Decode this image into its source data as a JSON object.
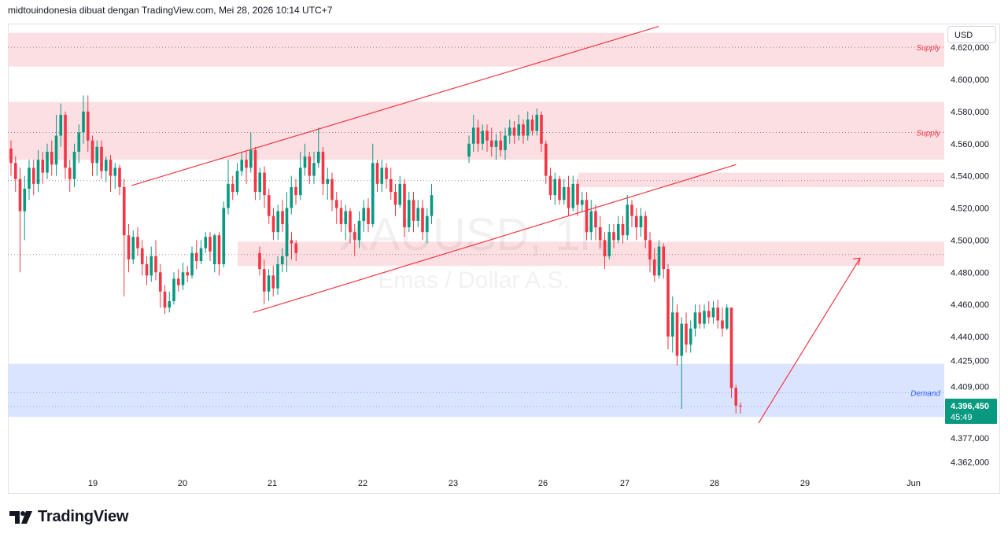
{
  "header": {
    "text": "midtouindonesia dibuat dengan TradingView.com, Mei 28, 2026 10:14 UTC+7"
  },
  "currency": "USD",
  "watermark": {
    "symbol": "XAUUSD, 1h",
    "name": "Emas / Dollar A.S."
  },
  "logo": {
    "text": "TradingView"
  },
  "price_label": {
    "price": "4.396,450",
    "countdown": "45:49"
  },
  "colors": {
    "bull": "#089981",
    "bear": "#f23645",
    "supply": "#fcdcdf",
    "demand": "#d9e3ff",
    "line": "#f23645"
  },
  "chart_data": {
    "type": "candlestick",
    "timeframe": "1h",
    "y_ticks": [
      4620,
      4600,
      4580,
      4560,
      4540,
      4520,
      4500,
      4480,
      4460,
      4440,
      4425,
      4409,
      4377,
      4362
    ],
    "y_tick_labels": [
      "4.620,000",
      "4.600,000",
      "4.580,000",
      "4.560,000",
      "4.540,000",
      "4.520,000",
      "4.500,000",
      "4.480,000",
      "4.460,000",
      "4.440,000",
      "4.425,000",
      "4.409,000",
      "4.377,000",
      "4.362,000"
    ],
    "x_ticks": [
      "19",
      "20",
      "21",
      "22",
      "23",
      "26",
      "27",
      "28",
      "29",
      "Jun"
    ],
    "zones": [
      {
        "label": "Supply",
        "from": 4608,
        "to": 4629,
        "mid": 4620
      },
      {
        "label": "Supply",
        "from": 4550,
        "to": 4586,
        "mid": 4567
      },
      {
        "label": "",
        "from": 4533,
        "to": 4542,
        "mid": 4537
      },
      {
        "label": "",
        "from": 4484,
        "to": 4499,
        "mid": 4491
      },
      {
        "label": "Demand",
        "from": 4390,
        "to": 4423,
        "mid": 4405,
        "mid2": 4396.45
      }
    ],
    "trendlines": [
      {
        "from": [
          5.5,
          4534
        ],
        "to": [
          61.5,
          4633
        ]
      },
      {
        "from": [
          16.5,
          4455
        ],
        "to": [
          68.5,
          4547
        ]
      }
    ],
    "projection_arrow": {
      "from": [
        76,
        4394
      ],
      "to": [
        93.5,
        4478
      ]
    },
    "last_price": 4396.45,
    "candles": [
      [
        0,
        4557,
        4548,
        4562,
        4540
      ],
      [
        1,
        4548,
        4538,
        4552,
        4530
      ],
      [
        2,
        4538,
        4518,
        4545,
        4480
      ],
      [
        3,
        4518,
        4532,
        4540,
        4500
      ],
      [
        4,
        4532,
        4545,
        4550,
        4525
      ],
      [
        5,
        4545,
        4535,
        4550,
        4528
      ],
      [
        6,
        4535,
        4550,
        4556,
        4530
      ],
      [
        7,
        4550,
        4542,
        4555,
        4535
      ],
      [
        8,
        4542,
        4555,
        4560,
        4538
      ],
      [
        9,
        4555,
        4547,
        4562,
        4540
      ],
      [
        10,
        4547,
        4565,
        4578,
        4540
      ],
      [
        11,
        4565,
        4578,
        4585,
        4558
      ],
      [
        12,
        4578,
        4545,
        4580,
        4538
      ],
      [
        13,
        4545,
        4538,
        4550,
        4530
      ],
      [
        14,
        4538,
        4555,
        4560,
        4533
      ],
      [
        15,
        4555,
        4567,
        4572,
        4548
      ],
      [
        16,
        4567,
        4580,
        4590,
        4560
      ],
      [
        17,
        4580,
        4562,
        4590,
        4555
      ],
      [
        18,
        4562,
        4548,
        4565,
        4540
      ],
      [
        19,
        4548,
        4558,
        4562,
        4540
      ],
      [
        20,
        4558,
        4543,
        4562,
        4538
      ],
      [
        21,
        4543,
        4550,
        4552,
        4536
      ],
      [
        22,
        4550,
        4540,
        4553,
        4530
      ],
      [
        23,
        4540,
        4545,
        4548,
        4532
      ],
      [
        24,
        4545,
        4533,
        4547,
        4528
      ],
      [
        25,
        4533,
        4503,
        4538,
        4465
      ],
      [
        26,
        4503,
        4488,
        4510,
        4480
      ],
      [
        27,
        4488,
        4502,
        4506,
        4485
      ],
      [
        28,
        4502,
        4495,
        4508,
        4490
      ],
      [
        29,
        4495,
        4485,
        4500,
        4478
      ],
      [
        30,
        4485,
        4478,
        4490,
        4472
      ],
      [
        31,
        4478,
        4490,
        4496,
        4474
      ],
      [
        32,
        4490,
        4480,
        4500,
        4475
      ],
      [
        33,
        4480,
        4468,
        4485,
        4458
      ],
      [
        34,
        4468,
        4458,
        4472,
        4454
      ],
      [
        35,
        4458,
        4462,
        4468,
        4455
      ],
      [
        36,
        4462,
        4476,
        4480,
        4460
      ],
      [
        37,
        4476,
        4472,
        4482,
        4468
      ],
      [
        38,
        4472,
        4480,
        4486,
        4469
      ],
      [
        39,
        4480,
        4478,
        4484,
        4474
      ],
      [
        40,
        4478,
        4492,
        4496,
        4476
      ],
      [
        41,
        4492,
        4487,
        4500,
        4482
      ],
      [
        42,
        4487,
        4495,
        4500,
        4485
      ],
      [
        43,
        4495,
        4502,
        4505,
        4492
      ],
      [
        44,
        4502,
        4493,
        4505,
        4487
      ],
      [
        45,
        4485,
        4503,
        4504,
        4480
      ],
      [
        46,
        4503,
        4485,
        4505,
        4478
      ],
      [
        47,
        4485,
        4520,
        4524,
        4483
      ],
      [
        48,
        4520,
        4535,
        4550,
        4516
      ],
      [
        49,
        4535,
        4530,
        4540,
        4525
      ],
      [
        50,
        4530,
        4543,
        4548,
        4528
      ],
      [
        51,
        4543,
        4550,
        4555,
        4540
      ],
      [
        52,
        4550,
        4545,
        4556,
        4535
      ],
      [
        53,
        4545,
        4556,
        4567,
        4542
      ],
      [
        54,
        4556,
        4530,
        4558,
        4525
      ],
      [
        55,
        4530,
        4542,
        4545,
        4525
      ],
      [
        56,
        4542,
        4528,
        4546,
        4520
      ],
      [
        57,
        4528,
        4515,
        4532,
        4510
      ],
      [
        58,
        4515,
        4505,
        4520,
        4500
      ],
      [
        59,
        4505,
        4518,
        4522,
        4500
      ],
      [
        60,
        4518,
        4510,
        4525,
        4505
      ],
      [
        61,
        4510,
        4500,
        4515,
        4494
      ],
      [
        62,
        4500,
        4498,
        4505,
        4488
      ],
      [
        63,
        4498,
        4492,
        4500,
        4487
      ]
    ]
  }
}
